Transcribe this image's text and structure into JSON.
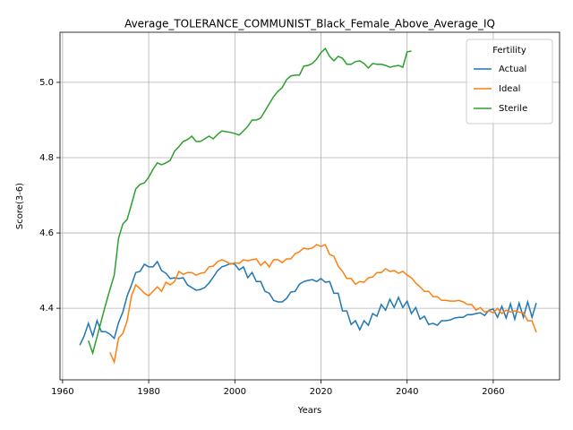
{
  "chart_data": {
    "type": "line",
    "title": "Average_TOLERANCE_COMMUNIST_Black_Female_Above_Average_IQ",
    "xlabel": "Years",
    "ylabel": "Score(3-6)",
    "legend_title": "Fertility",
    "legend_loc": "upper right",
    "x": [
      1964,
      1965,
      1966,
      1967,
      1968,
      1969,
      1970,
      1971,
      1972,
      1973,
      1974,
      1975,
      1976,
      1977,
      1978,
      1979,
      1980,
      1981,
      1982,
      1983,
      1984,
      1985,
      1986,
      1987,
      1988,
      1989,
      1990,
      1991,
      1992,
      1993,
      1994,
      1995,
      1996,
      1997,
      1998,
      1999,
      2000,
      2001,
      2002,
      2003,
      2004,
      2005,
      2006,
      2007,
      2008,
      2009,
      2010,
      2011,
      2012,
      2013,
      2014,
      2015,
      2016,
      2017,
      2018,
      2019,
      2020,
      2021,
      2022,
      2023,
      2024,
      2025,
      2026,
      2027,
      2028,
      2029,
      2030,
      2031,
      2032,
      2033,
      2034,
      2035,
      2036,
      2037,
      2038,
      2039,
      2040,
      2041,
      2042,
      2043,
      2044,
      2045,
      2046,
      2047,
      2048,
      2049,
      2050,
      2051,
      2052,
      2053,
      2054,
      2055,
      2056,
      2057,
      2058,
      2059,
      2060,
      2061,
      2062,
      2063,
      2064,
      2065,
      2066,
      2067,
      2068,
      2069,
      2070
    ],
    "series": [
      {
        "name": "Actual",
        "color": "#1f77b4",
        "values": [
          4.302,
          4.326,
          4.36,
          4.326,
          4.367,
          4.338,
          4.338,
          4.331,
          4.32,
          4.362,
          4.39,
          4.433,
          4.462,
          4.495,
          4.498,
          4.517,
          4.51,
          4.51,
          4.524,
          4.5,
          4.493,
          4.479,
          4.481,
          4.479,
          4.481,
          4.462,
          4.455,
          4.448,
          4.45,
          4.455,
          4.467,
          4.483,
          4.5,
          4.51,
          4.514,
          4.519,
          4.517,
          4.502,
          4.51,
          4.481,
          4.495,
          4.471,
          4.471,
          4.445,
          4.44,
          4.421,
          4.417,
          4.417,
          4.426,
          4.443,
          4.445,
          4.464,
          4.471,
          4.474,
          4.476,
          4.471,
          4.479,
          4.469,
          4.471,
          4.44,
          4.44,
          4.393,
          4.393,
          4.357,
          4.367,
          4.343,
          4.367,
          4.355,
          4.386,
          4.379,
          4.41,
          4.395,
          4.424,
          4.402,
          4.429,
          4.402,
          4.419,
          4.386,
          4.402,
          4.371,
          4.379,
          4.357,
          4.36,
          4.355,
          4.367,
          4.367,
          4.369,
          4.374,
          4.376,
          4.376,
          4.383,
          4.383,
          4.386,
          4.388,
          4.381,
          4.395,
          4.398,
          4.376,
          4.405,
          4.374,
          4.412,
          4.371,
          4.414,
          4.376,
          4.417,
          4.376,
          4.414
        ]
      },
      {
        "name": "Ideal",
        "color": "#ff7f0e",
        "values": [
          null,
          null,
          null,
          null,
          null,
          null,
          null,
          4.283,
          4.257,
          4.321,
          4.333,
          4.367,
          4.433,
          4.462,
          4.452,
          4.44,
          4.433,
          4.445,
          4.457,
          4.445,
          4.469,
          4.462,
          4.471,
          4.498,
          4.49,
          4.495,
          4.495,
          4.488,
          4.493,
          4.495,
          4.51,
          4.512,
          4.524,
          4.529,
          4.524,
          4.517,
          4.521,
          4.519,
          4.529,
          4.526,
          4.529,
          4.531,
          4.514,
          4.524,
          4.51,
          4.529,
          4.529,
          4.521,
          4.531,
          4.531,
          4.545,
          4.55,
          4.56,
          4.557,
          4.56,
          4.569,
          4.564,
          4.569,
          4.543,
          4.538,
          4.512,
          4.498,
          4.479,
          4.479,
          4.464,
          4.471,
          4.469,
          4.481,
          4.483,
          4.495,
          4.495,
          4.505,
          4.498,
          4.5,
          4.493,
          4.498,
          4.488,
          4.481,
          4.467,
          4.457,
          4.445,
          4.445,
          4.431,
          4.431,
          4.421,
          4.421,
          4.419,
          4.419,
          4.421,
          4.417,
          4.41,
          4.41,
          4.395,
          4.402,
          4.39,
          4.393,
          4.388,
          4.4,
          4.386,
          4.395,
          4.39,
          4.393,
          4.39,
          4.388,
          4.367,
          4.367,
          4.336
        ]
      },
      {
        "name": "Sterile",
        "color": "#2ca02c",
        "values": [
          null,
          null,
          4.314,
          4.281,
          4.324,
          4.367,
          4.41,
          4.45,
          4.488,
          4.586,
          4.624,
          4.636,
          4.676,
          4.717,
          4.729,
          4.733,
          4.748,
          4.769,
          4.786,
          4.781,
          4.786,
          4.793,
          4.817,
          4.829,
          4.843,
          4.848,
          4.857,
          4.843,
          4.843,
          4.85,
          4.857,
          4.85,
          4.862,
          4.871,
          4.869,
          4.867,
          4.864,
          4.86,
          4.871,
          4.883,
          4.9,
          4.9,
          4.905,
          4.924,
          4.943,
          4.962,
          4.976,
          4.986,
          5.007,
          5.017,
          5.019,
          5.019,
          5.043,
          5.045,
          5.05,
          5.062,
          5.079,
          5.09,
          5.069,
          5.057,
          5.069,
          5.064,
          5.048,
          5.048,
          5.055,
          5.057,
          5.05,
          5.038,
          5.05,
          5.048,
          5.048,
          5.045,
          5.04,
          5.043,
          5.045,
          5.04,
          5.081,
          5.083,
          null,
          null,
          null,
          null,
          null,
          null,
          null,
          null,
          null,
          null,
          null,
          null,
          null,
          null,
          null,
          null,
          null,
          null,
          null,
          null,
          null,
          null,
          null,
          null,
          null,
          null,
          null,
          null,
          null
        ]
      }
    ],
    "xlim": [
      1959.4,
      2075.4
    ],
    "ylim": [
      4.21,
      5.133
    ],
    "xticks": [
      1960,
      1980,
      2000,
      2020,
      2040,
      2060
    ],
    "yticks": [
      4.4,
      4.6,
      4.8,
      {
        "value": 5,
        "label": "5.0"
      }
    ],
    "grid": true
  }
}
